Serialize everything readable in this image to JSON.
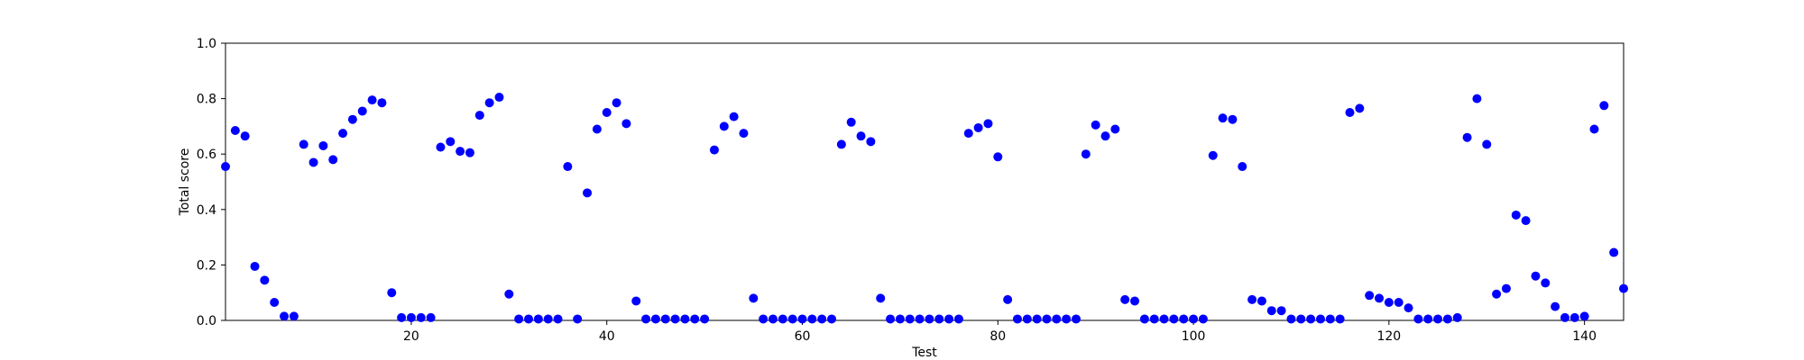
{
  "chart_data": {
    "type": "scatter",
    "xlabel": "Test",
    "ylabel": "Total score",
    "xlim": [
      1,
      144
    ],
    "ylim": [
      0.0,
      1.0
    ],
    "xticks": [
      20,
      40,
      60,
      80,
      100,
      120,
      140
    ],
    "xtick_labels": [
      "20",
      "40",
      "60",
      "80",
      "100",
      "120",
      "140"
    ],
    "yticks": [
      0.0,
      0.2,
      0.4,
      0.6,
      0.8,
      1.0
    ],
    "ytick_labels": [
      "0.0",
      "0.2",
      "0.4",
      "0.6",
      "0.8",
      "1.0"
    ],
    "grid": false,
    "marker_color": "#0000ff",
    "x": [
      1,
      2,
      3,
      4,
      5,
      6,
      7,
      8,
      9,
      10,
      11,
      12,
      13,
      14,
      15,
      16,
      17,
      18,
      19,
      20,
      21,
      22,
      23,
      24,
      25,
      26,
      27,
      28,
      29,
      30,
      31,
      32,
      33,
      34,
      35,
      36,
      37,
      38,
      39,
      40,
      41,
      42,
      43,
      44,
      45,
      46,
      47,
      48,
      49,
      50,
      51,
      52,
      53,
      54,
      55,
      56,
      57,
      58,
      59,
      60,
      61,
      62,
      63,
      64,
      65,
      66,
      67,
      68,
      69,
      70,
      71,
      72,
      73,
      74,
      75,
      76,
      77,
      78,
      79,
      80,
      81,
      82,
      83,
      84,
      85,
      86,
      87,
      88,
      89,
      90,
      91,
      92,
      93,
      94,
      95,
      96,
      97,
      98,
      99,
      100,
      101,
      102,
      103,
      104,
      105,
      106,
      107,
      108,
      109,
      110,
      111,
      112,
      113,
      114,
      115,
      116,
      117,
      118,
      119,
      120,
      121,
      122,
      123,
      124,
      125,
      126,
      127,
      128,
      129,
      130,
      131,
      132,
      133,
      134,
      135,
      136,
      137,
      138,
      139,
      140,
      141,
      142,
      143,
      144
    ],
    "y": [
      0.555,
      0.685,
      0.665,
      0.195,
      0.145,
      0.065,
      0.015,
      0.015,
      0.635,
      0.57,
      0.63,
      0.58,
      0.675,
      0.725,
      0.755,
      0.795,
      0.785,
      0.1,
      0.01,
      0.01,
      0.01,
      0.01,
      0.625,
      0.645,
      0.61,
      0.605,
      0.74,
      0.785,
      0.805,
      0.095,
      0.005,
      0.005,
      0.005,
      0.005,
      0.005,
      0.555,
      0.005,
      0.46,
      0.69,
      0.75,
      0.785,
      0.71,
      0.07,
      0.005,
      0.005,
      0.005,
      0.005,
      0.005,
      0.005,
      0.005,
      0.615,
      0.7,
      0.735,
      0.675,
      0.08,
      0.005,
      0.005,
      0.005,
      0.005,
      0.005,
      0.005,
      0.005,
      0.005,
      0.635,
      0.715,
      0.665,
      0.645,
      0.08,
      0.005,
      0.005,
      0.005,
      0.005,
      0.005,
      0.005,
      0.005,
      0.005,
      0.675,
      0.695,
      0.71,
      0.59,
      0.075,
      0.005,
      0.005,
      0.005,
      0.005,
      0.005,
      0.005,
      0.005,
      0.6,
      0.705,
      0.665,
      0.69,
      0.075,
      0.07,
      0.005,
      0.005,
      0.005,
      0.005,
      0.005,
      0.005,
      0.005,
      0.595,
      0.73,
      0.725,
      0.555,
      0.075,
      0.07,
      0.035,
      0.035,
      0.005,
      0.005,
      0.005,
      0.005,
      0.005,
      0.005,
      0.75,
      0.765,
      0.09,
      0.08,
      0.065,
      0.065,
      0.045,
      0.005,
      0.005,
      0.005,
      0.005,
      0.01,
      0.66,
      0.8,
      0.635,
      0.095,
      0.115,
      0.38,
      0.36,
      0.16,
      0.135,
      0.05,
      0.01,
      0.01,
      0.015,
      0.69,
      0.775,
      0.245,
      0.115
    ]
  }
}
